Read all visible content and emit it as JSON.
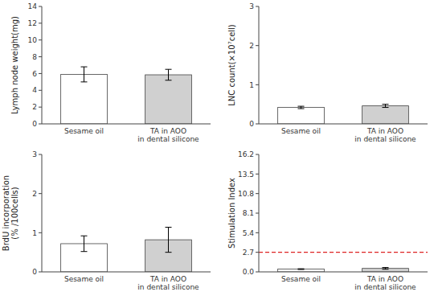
{
  "chart_data": [
    {
      "type": "bar",
      "y_label": "Lymph node weight(mg)",
      "categories": [
        "Sesame oil",
        "TA in AOO\nin dental silicone"
      ],
      "values": [
        5.9,
        5.85
      ],
      "errors": [
        0.9,
        0.65
      ],
      "colors": [
        "white",
        "#d0d0d0"
      ],
      "ylim": [
        0,
        14
      ],
      "yticks": [
        0,
        2,
        4,
        6,
        8,
        10,
        12,
        14
      ],
      "grid": false
    },
    {
      "type": "bar",
      "y_label": "LNC count(×10⁷cell)",
      "categories": [
        "Sesame oil",
        "TA in AOO\nin dental silicone"
      ],
      "values": [
        0.42,
        0.46
      ],
      "errors": [
        0.03,
        0.04
      ],
      "colors": [
        "white",
        "#d0d0d0"
      ],
      "ylim": [
        0,
        3
      ],
      "yticks": [
        0,
        1,
        2,
        3
      ],
      "grid": false
    },
    {
      "type": "bar",
      "y_label": "BrdU incorporation\n(% /100cells)",
      "categories": [
        "Sesame oil",
        "TA in AOO\nin dental silicone"
      ],
      "values": [
        0.72,
        0.82
      ],
      "errors": [
        0.2,
        0.32
      ],
      "colors": [
        "white",
        "#d0d0d0"
      ],
      "ylim": [
        0,
        3
      ],
      "yticks": [
        0,
        1,
        2,
        3
      ],
      "grid": false
    },
    {
      "type": "bar",
      "y_label": "Stimulation Index",
      "categories": [
        "Sesame oil",
        "TA in AOO\nin dental silicone"
      ],
      "values": [
        0.38,
        0.48
      ],
      "errors": [
        0.05,
        0.12
      ],
      "colors": [
        "white",
        "#d0d0d0"
      ],
      "ylim": [
        0,
        16.2
      ],
      "yticks": [
        {
          "value": 0,
          "label": "0.0"
        },
        2.7,
        5.4,
        8.1,
        10.8,
        13.5,
        16.2
      ],
      "reference_line": {
        "y": 2.7,
        "color": "#dd2222"
      },
      "grid": false
    }
  ]
}
